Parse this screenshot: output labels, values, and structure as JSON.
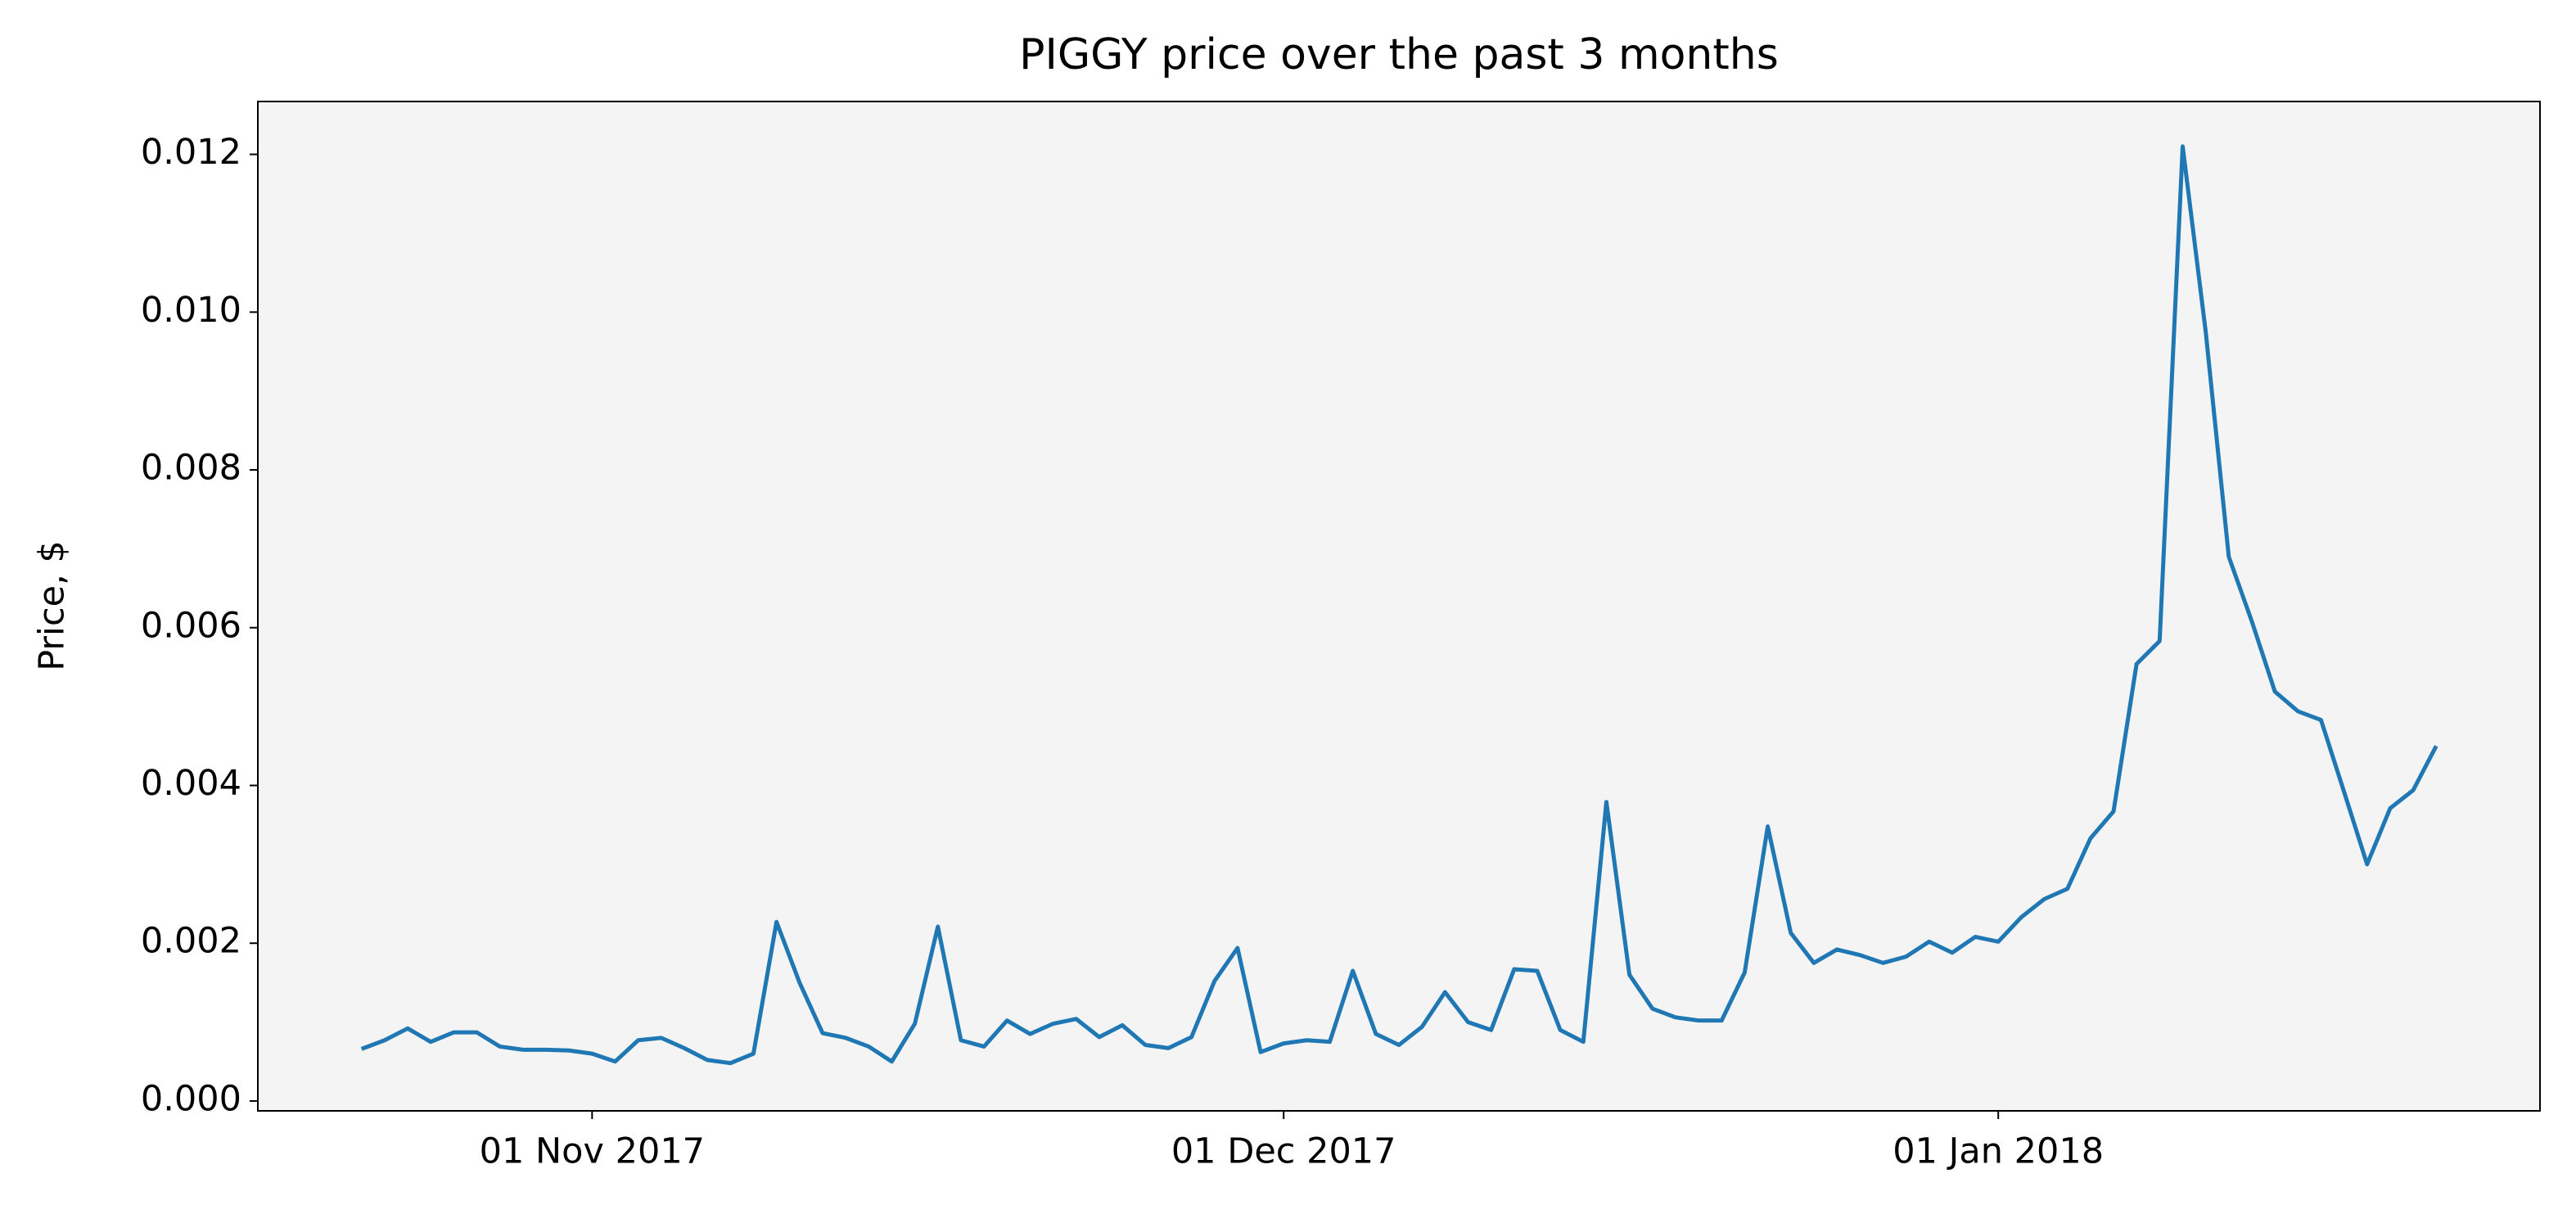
{
  "chart_data": {
    "type": "line",
    "title": "PIGGY price over the past 3 months",
    "y_label": "Price, $",
    "x": [
      "2017-10-22",
      "2017-10-23",
      "2017-10-24",
      "2017-10-25",
      "2017-10-26",
      "2017-10-27",
      "2017-10-28",
      "2017-10-29",
      "2017-10-30",
      "2017-10-31",
      "2017-11-01",
      "2017-11-02",
      "2017-11-03",
      "2017-11-04",
      "2017-11-05",
      "2017-11-06",
      "2017-11-07",
      "2017-11-08",
      "2017-11-09",
      "2017-11-10",
      "2017-11-11",
      "2017-11-12",
      "2017-11-13",
      "2017-11-14",
      "2017-11-15",
      "2017-11-16",
      "2017-11-17",
      "2017-11-18",
      "2017-11-19",
      "2017-11-20",
      "2017-11-21",
      "2017-11-22",
      "2017-11-23",
      "2017-11-24",
      "2017-11-25",
      "2017-11-26",
      "2017-11-27",
      "2017-11-28",
      "2017-11-29",
      "2017-11-30",
      "2017-12-01",
      "2017-12-02",
      "2017-12-03",
      "2017-12-04",
      "2017-12-05",
      "2017-12-06",
      "2017-12-07",
      "2017-12-08",
      "2017-12-09",
      "2017-12-10",
      "2017-12-11",
      "2017-12-12",
      "2017-12-13",
      "2017-12-14",
      "2017-12-15",
      "2017-12-16",
      "2017-12-17",
      "2017-12-18",
      "2017-12-19",
      "2017-12-20",
      "2017-12-21",
      "2017-12-22",
      "2017-12-23",
      "2017-12-24",
      "2017-12-25",
      "2017-12-26",
      "2017-12-27",
      "2017-12-28",
      "2017-12-29",
      "2017-12-30",
      "2017-12-31",
      "2018-01-01",
      "2018-01-02",
      "2018-01-03",
      "2018-01-04",
      "2018-01-05",
      "2018-01-06",
      "2018-01-07",
      "2018-01-08",
      "2018-01-09",
      "2018-01-10",
      "2018-01-11",
      "2018-01-12",
      "2018-01-13",
      "2018-01-14",
      "2018-01-15",
      "2018-01-16",
      "2018-01-17",
      "2018-01-18",
      "2018-01-19",
      "2018-01-20"
    ],
    "series": [
      {
        "name": "PIGGY",
        "color": "#1f77b4",
        "values": [
          0.00066,
          0.00077,
          0.00092,
          0.00075,
          0.00087,
          0.00087,
          0.00069,
          0.00065,
          0.00065,
          0.00064,
          0.0006,
          0.0005,
          0.00077,
          0.0008,
          0.00067,
          0.00052,
          0.00048,
          0.0006,
          0.00227,
          0.0015,
          0.00086,
          0.0008,
          0.00069,
          0.0005,
          0.00098,
          0.00221,
          0.00077,
          0.00069,
          0.00102,
          0.00085,
          0.00098,
          0.00104,
          0.00081,
          0.00096,
          0.00071,
          0.00067,
          0.00081,
          0.00152,
          0.00194,
          0.00062,
          0.00073,
          0.00077,
          0.00075,
          0.00165,
          0.00085,
          0.00071,
          0.00094,
          0.00138,
          0.001,
          0.0009,
          0.00167,
          0.00165,
          0.0009,
          0.00075,
          0.00379,
          0.0016,
          0.00117,
          0.00106,
          0.00102,
          0.00102,
          0.00163,
          0.00348,
          0.00213,
          0.00175,
          0.00192,
          0.00185,
          0.00175,
          0.00183,
          0.00202,
          0.00188,
          0.00208,
          0.00202,
          0.00233,
          0.00256,
          0.00269,
          0.00333,
          0.00367,
          0.00554,
          0.00583,
          0.0121,
          0.00975,
          0.0069,
          0.00608,
          0.00519,
          0.00494,
          0.00483,
          0.00392,
          0.003,
          0.00371,
          0.00394,
          0.0045
        ]
      }
    ],
    "xlim": [
      "2017-10-17T12:00",
      "2018-01-24T12:00"
    ],
    "xticks": [
      {
        "value": "2017-11-01",
        "label": "01 Nov 2017"
      },
      {
        "value": "2017-12-01",
        "label": "01 Dec 2017"
      },
      {
        "value": "2018-01-01",
        "label": "01 Jan 2018"
      }
    ],
    "ylim": [
      -0.000125,
      0.01267
    ],
    "yticks": [
      {
        "value": 0,
        "label": "0.000"
      },
      {
        "value": 0.002,
        "label": "0.002"
      },
      {
        "value": 0.004,
        "label": "0.004"
      },
      {
        "value": 0.006,
        "label": "0.006"
      },
      {
        "value": 0.008,
        "label": "0.008"
      },
      {
        "value": 0.01,
        "label": "0.010"
      },
      {
        "value": 0.012,
        "label": "0.012"
      }
    ],
    "background": "#f4f4f4"
  }
}
